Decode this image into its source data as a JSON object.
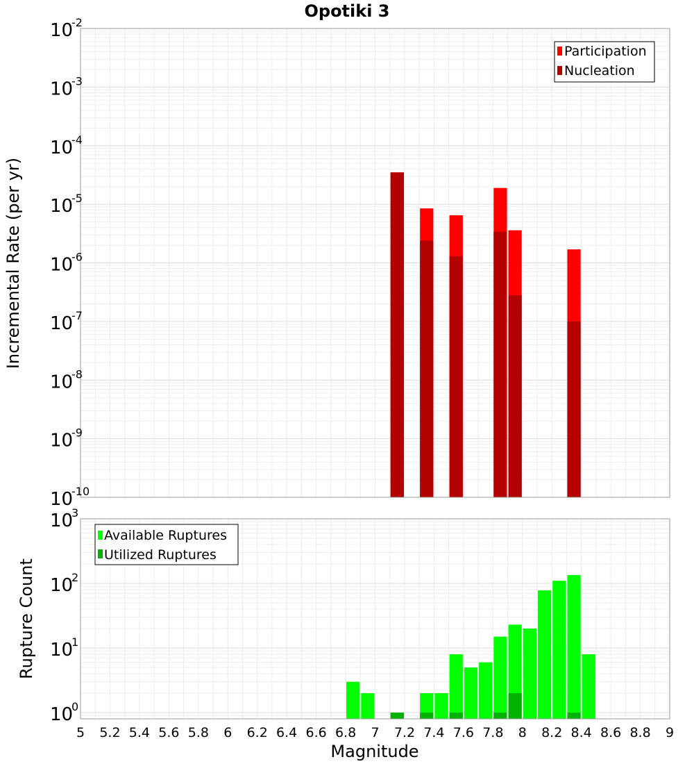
{
  "chart_data": [
    {
      "type": "bar",
      "title": "Opotiki 3",
      "xlabel": "",
      "ylabel": "Incremental Rate (per yr)",
      "yscale": "log",
      "xlim": [
        5,
        9
      ],
      "ylim": [
        1e-10,
        0.01
      ],
      "y_ticks": [
        {
          "base": "10",
          "exp": "-10"
        },
        {
          "base": "10",
          "exp": "-9"
        },
        {
          "base": "10",
          "exp": "-8"
        },
        {
          "base": "10",
          "exp": "-7"
        },
        {
          "base": "10",
          "exp": "-6"
        },
        {
          "base": "10",
          "exp": "-5"
        },
        {
          "base": "10",
          "exp": "-4"
        },
        {
          "base": "10",
          "exp": "-3"
        },
        {
          "base": "10",
          "exp": "-2"
        }
      ],
      "legend_position": "top-right",
      "bar_width": 0.1,
      "series": [
        {
          "name": "Participation",
          "color": "#ff0000",
          "x": [
            7.15,
            7.35,
            7.55,
            7.85,
            7.95,
            8.35
          ],
          "values": [
            3.5e-05,
            8.5e-06,
            6.5e-06,
            1.9e-05,
            3.6e-06,
            1.7e-06
          ]
        },
        {
          "name": "Nucleation",
          "color": "#b30000",
          "x": [
            7.15,
            7.35,
            7.55,
            7.85,
            7.95,
            8.35
          ],
          "values": [
            3.5e-05,
            2.4e-06,
            1.3e-06,
            3.4e-06,
            2.8e-07,
            1e-07
          ]
        }
      ]
    },
    {
      "type": "bar",
      "title": "",
      "xlabel": "Magnitude",
      "ylabel": "Rupture Count",
      "yscale": "log",
      "xlim": [
        5,
        9
      ],
      "ylim": [
        0.8,
        1000
      ],
      "x_ticks": [
        "5",
        "5.2",
        "5.4",
        "5.6",
        "5.8",
        "6",
        "6.2",
        "6.4",
        "6.6",
        "6.8",
        "7",
        "7.2",
        "7.4",
        "7.6",
        "7.8",
        "8",
        "8.2",
        "8.4",
        "8.6",
        "8.8",
        "9"
      ],
      "y_ticks": [
        {
          "base": "10",
          "exp": "0"
        },
        {
          "base": "10",
          "exp": "1"
        },
        {
          "base": "10",
          "exp": "2"
        },
        {
          "base": "10",
          "exp": "3"
        }
      ],
      "legend_position": "top-left",
      "bar_width": 0.1,
      "series": [
        {
          "name": "Available Ruptures",
          "color": "#00ff00",
          "x": [
            6.85,
            6.95,
            7.15,
            7.35,
            7.45,
            7.55,
            7.65,
            7.75,
            7.85,
            7.95,
            8.05,
            8.15,
            8.25,
            8.35,
            8.45
          ],
          "values": [
            3,
            2,
            1,
            2,
            2,
            8,
            5,
            6,
            15,
            23,
            20,
            78,
            110,
            135,
            8
          ]
        },
        {
          "name": "Utilized Ruptures",
          "color": "#00b300",
          "x": [
            7.15,
            7.35,
            7.55,
            7.85,
            7.95,
            8.35
          ],
          "values": [
            1,
            1,
            1,
            1,
            2,
            1
          ]
        }
      ]
    }
  ]
}
